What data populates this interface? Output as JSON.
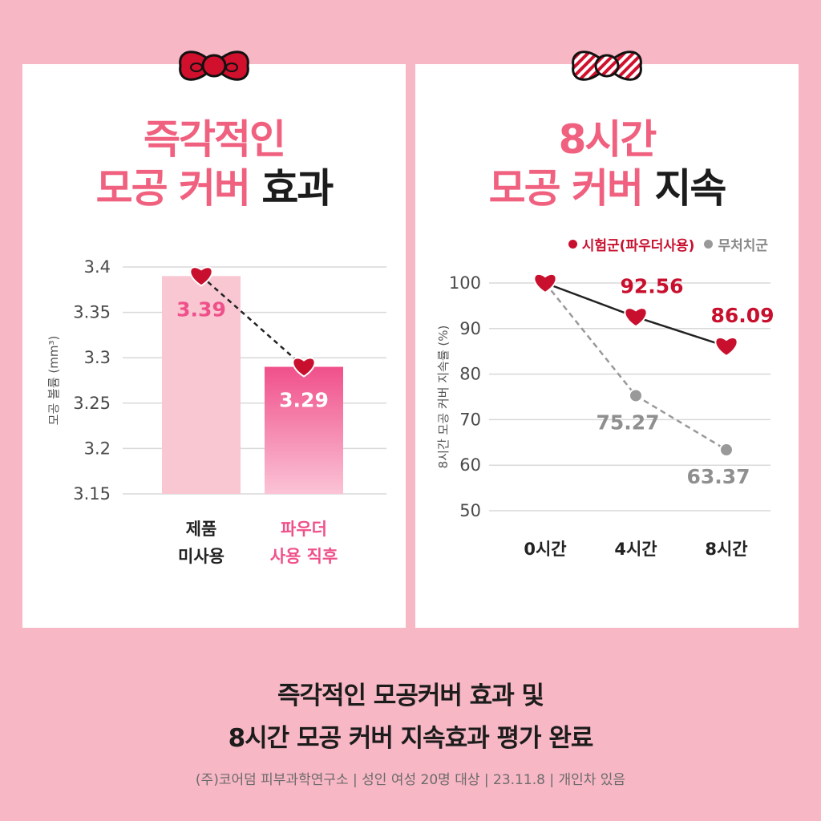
{
  "left_panel": {
    "title_line1": "즉각적인",
    "title_line2_pink": "모공 커버",
    "title_line2_dark": "효과"
  },
  "right_panel": {
    "title_line1": "8시간",
    "title_line2_pink": "모공 커버",
    "title_line2_dark": "지속"
  },
  "colors": {
    "pink_title": "#f0607f",
    "treated_red": "#c8102e",
    "control_gray": "#999999",
    "bar_light": "#f8c7d2",
    "bar_strong": "#f0508a"
  },
  "icons": [
    "ribbon-bow-icon",
    "striped-ribbon-bow-icon",
    "heart-marker-icon"
  ],
  "chart_data": [
    {
      "type": "bar",
      "categories": [
        "제품\n미사용",
        "파우더\n사용 직후"
      ],
      "values": [
        3.39,
        3.29
      ],
      "value_labels": [
        "3.39",
        "3.29"
      ],
      "title": "",
      "xlabel": "",
      "ylabel": "모공 볼륨 (mm³)",
      "yticks": [
        "3.4",
        "3.35",
        "3.3",
        "3.25",
        "3.2",
        "3.15"
      ],
      "ylim": [
        3.15,
        3.4
      ],
      "grid": true,
      "connector": "dashed line with heart markers"
    },
    {
      "type": "line",
      "x": [
        "0시간",
        "4시간",
        "8시간"
      ],
      "series": [
        {
          "name": "시험군(파우더사용)",
          "values": [
            100,
            92.56,
            86.09
          ],
          "value_labels": [
            "",
            "92.56",
            "86.09"
          ],
          "style": "solid, heart markers"
        },
        {
          "name": "무처치군",
          "values": [
            100,
            75.27,
            63.37
          ],
          "value_labels": [
            "",
            "75.27",
            "63.37"
          ],
          "style": "dashed, circle markers"
        }
      ],
      "title": "",
      "xlabel": "",
      "ylabel": "8시간 모공 커버 지속률 (%)",
      "yticks": [
        "100",
        "90",
        "80",
        "70",
        "60",
        "50"
      ],
      "ylim": [
        50,
        100
      ],
      "grid": true,
      "legend": "top-right"
    }
  ],
  "footer": {
    "line1": "즉각적인 모공커버 효과 및",
    "line2": "8시간 모공 커버 지속효과 평가 완료",
    "note": "(주)코어덤 피부과학연구소 | 성인 여성 20명 대상 | 23.11.8 | 개인차 있음"
  }
}
